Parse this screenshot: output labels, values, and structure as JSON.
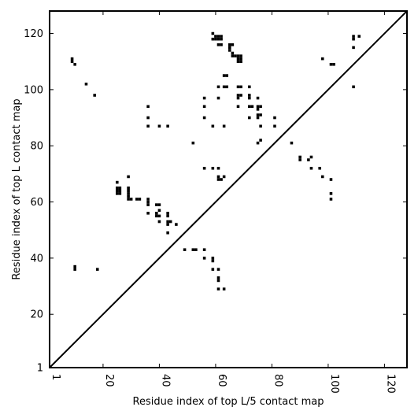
{
  "chart_data": {
    "type": "scatter",
    "xlabel": "Residue index of top L/5 contact map",
    "ylabel": "Residue index of top L contact map",
    "xlim": [
      1,
      128
    ],
    "ylim": [
      1,
      128
    ],
    "xticks": [
      1,
      20,
      40,
      60,
      80,
      100,
      120
    ],
    "yticks": [
      1,
      20,
      40,
      60,
      80,
      100,
      120
    ],
    "xtick_labels": [
      "1",
      "20",
      "40",
      "60",
      "80",
      "100",
      "120"
    ],
    "ytick_labels": [
      "1",
      "20",
      "40",
      "60",
      "80",
      "100",
      "120"
    ],
    "diagonal": true,
    "grid": false,
    "marker_color": "#000000",
    "points": [
      [
        9,
        110
      ],
      [
        9,
        111
      ],
      [
        10,
        109
      ],
      [
        14,
        102
      ],
      [
        17,
        98
      ],
      [
        36,
        94
      ],
      [
        36,
        90
      ],
      [
        36,
        87
      ],
      [
        40,
        87
      ],
      [
        43,
        87
      ],
      [
        56,
        97
      ],
      [
        56,
        94
      ],
      [
        56,
        90
      ],
      [
        59,
        87
      ],
      [
        63,
        87
      ],
      [
        59,
        120
      ],
      [
        60,
        119
      ],
      [
        61,
        119
      ],
      [
        62,
        119
      ],
      [
        59,
        118
      ],
      [
        60,
        118
      ],
      [
        61,
        118
      ],
      [
        62,
        118
      ],
      [
        61,
        116
      ],
      [
        62,
        116
      ],
      [
        65,
        116
      ],
      [
        66,
        116
      ],
      [
        65,
        115
      ],
      [
        65,
        114
      ],
      [
        66,
        113
      ],
      [
        66,
        112
      ],
      [
        67,
        112
      ],
      [
        68,
        112
      ],
      [
        69,
        112
      ],
      [
        68,
        111
      ],
      [
        69,
        111
      ],
      [
        68,
        110
      ],
      [
        69,
        110
      ],
      [
        63,
        105
      ],
      [
        64,
        105
      ],
      [
        61,
        101
      ],
      [
        63,
        101
      ],
      [
        64,
        101
      ],
      [
        68,
        101
      ],
      [
        69,
        101
      ],
      [
        72,
        101
      ],
      [
        61,
        97
      ],
      [
        68,
        98
      ],
      [
        69,
        98
      ],
      [
        72,
        98
      ],
      [
        68,
        97
      ],
      [
        72,
        97
      ],
      [
        75,
        97
      ],
      [
        68,
        94
      ],
      [
        72,
        94
      ],
      [
        73,
        94
      ],
      [
        75,
        94
      ],
      [
        76,
        94
      ],
      [
        75,
        93
      ],
      [
        75,
        91
      ],
      [
        76,
        91
      ],
      [
        72,
        90
      ],
      [
        75,
        90
      ],
      [
        81,
        90
      ],
      [
        76,
        87
      ],
      [
        81,
        87
      ],
      [
        98,
        111
      ],
      [
        101,
        109
      ],
      [
        102,
        109
      ],
      [
        109,
        119
      ],
      [
        109,
        118
      ],
      [
        111,
        119
      ],
      [
        109,
        115
      ],
      [
        109,
        101
      ],
      [
        52,
        81
      ],
      [
        75,
        81
      ],
      [
        76,
        82
      ],
      [
        87,
        81
      ],
      [
        56,
        72
      ],
      [
        59,
        72
      ],
      [
        61,
        72
      ],
      [
        61,
        69
      ],
      [
        61,
        68
      ],
      [
        62,
        68
      ],
      [
        63,
        69
      ],
      [
        90,
        76
      ],
      [
        90,
        75
      ],
      [
        93,
        75
      ],
      [
        94,
        76
      ],
      [
        94,
        72
      ],
      [
        97,
        72
      ],
      [
        98,
        69
      ],
      [
        101,
        68
      ],
      [
        101,
        63
      ],
      [
        101,
        61
      ],
      [
        25,
        67
      ],
      [
        29,
        69
      ],
      [
        25,
        65
      ],
      [
        26,
        65
      ],
      [
        25,
        64
      ],
      [
        26,
        64
      ],
      [
        25,
        63
      ],
      [
        26,
        63
      ],
      [
        29,
        65
      ],
      [
        29,
        64
      ],
      [
        29,
        63
      ],
      [
        29,
        62
      ],
      [
        29,
        61
      ],
      [
        30,
        61
      ],
      [
        32,
        61
      ],
      [
        33,
        61
      ],
      [
        36,
        61
      ],
      [
        36,
        60
      ],
      [
        36,
        59
      ],
      [
        39,
        59
      ],
      [
        40,
        59
      ],
      [
        40,
        57
      ],
      [
        39,
        56
      ],
      [
        36,
        56
      ],
      [
        39,
        55
      ],
      [
        40,
        55
      ],
      [
        43,
        56
      ],
      [
        43,
        55
      ],
      [
        43,
        53
      ],
      [
        44,
        53
      ],
      [
        43,
        52
      ],
      [
        46,
        52
      ],
      [
        40,
        53
      ],
      [
        43,
        49
      ],
      [
        49,
        43
      ],
      [
        52,
        43
      ],
      [
        53,
        43
      ],
      [
        56,
        43
      ],
      [
        56,
        40
      ],
      [
        59,
        40
      ],
      [
        59,
        39
      ],
      [
        59,
        36
      ],
      [
        61,
        36
      ],
      [
        61,
        33
      ],
      [
        61,
        32
      ],
      [
        61,
        29
      ],
      [
        63,
        29
      ],
      [
        10,
        37
      ],
      [
        10,
        36
      ],
      [
        18,
        36
      ]
    ]
  }
}
